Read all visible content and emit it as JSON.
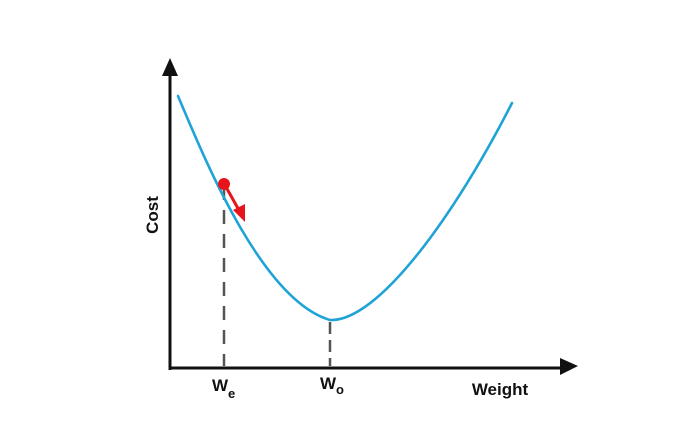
{
  "axes": {
    "x_label": "Weight",
    "y_label": "Cost"
  },
  "markers": [
    {
      "main": "W",
      "sub": "e"
    },
    {
      "main": "W",
      "sub": "o"
    }
  ],
  "colors": {
    "curve": "#1fa3d6",
    "point": "#e8141b",
    "axis": "#111111",
    "guide": "#555555"
  }
}
